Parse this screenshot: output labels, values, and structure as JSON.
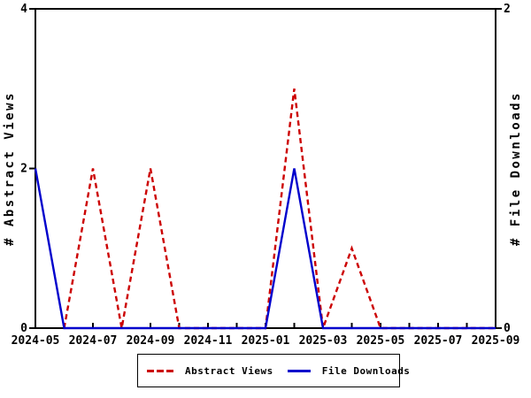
{
  "chart_data": {
    "type": "line",
    "title": "",
    "grid": false,
    "legend_position": "bottom",
    "x_categories": [
      "2024-05",
      "2024-06",
      "2024-07",
      "2024-08",
      "2024-09",
      "2024-10",
      "2024-11",
      "2024-12",
      "2025-01",
      "2025-02",
      "2025-03",
      "2025-04",
      "2025-05",
      "2025-06",
      "2025-07",
      "2025-08",
      "2025-09"
    ],
    "x_labeled_every": 2,
    "left_axis": {
      "label": "# Abstract Views",
      "min": 0,
      "max": 4,
      "ticks": [
        0,
        2,
        4
      ]
    },
    "right_axis": {
      "label": "# File Downloads",
      "min": 0,
      "max": 2,
      "ticks": [
        0,
        2
      ]
    },
    "series": [
      {
        "name": "Abstract Views",
        "axis": "left",
        "color": "#cc0000",
        "style": "dashed",
        "values": [
          null,
          0,
          2,
          0,
          2,
          0,
          0,
          0,
          0,
          3,
          0,
          1,
          0,
          0,
          0,
          0,
          0
        ]
      },
      {
        "name": "File Downloads",
        "axis": "right",
        "color": "#0000cc",
        "style": "solid",
        "values": [
          1,
          0,
          0,
          0,
          0,
          0,
          0,
          0,
          0,
          1,
          0,
          0,
          0,
          0,
          0,
          0,
          0
        ]
      }
    ]
  },
  "legend": {
    "items": [
      {
        "label": "Abstract Views",
        "color": "#cc0000",
        "style": "dashed"
      },
      {
        "label": "File Downloads",
        "color": "#0000cc",
        "style": "solid"
      }
    ]
  },
  "colors": {
    "abstract_views": "#cc0000",
    "file_downloads": "#0000cc",
    "axis": "#000000",
    "background": "#ffffff"
  }
}
